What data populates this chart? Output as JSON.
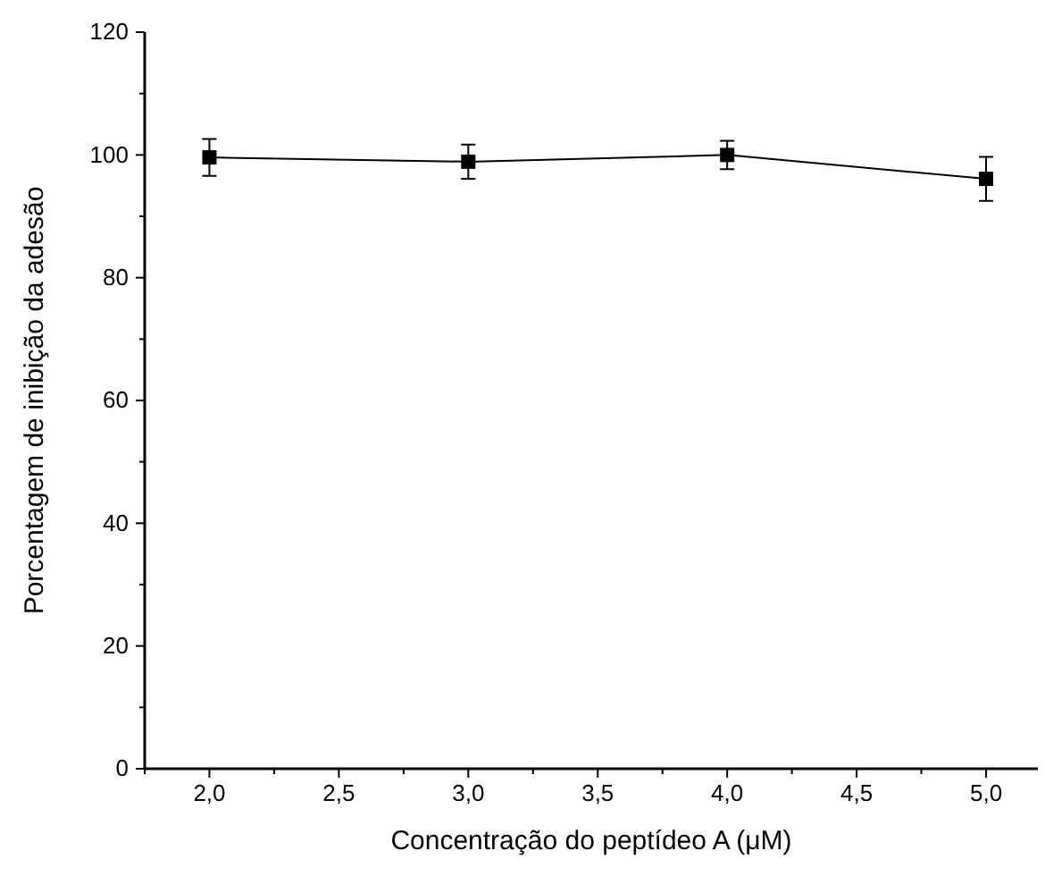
{
  "chart_data": {
    "type": "line",
    "xlabel": "Concentração do peptídeo A (μM)",
    "ylabel": "Porcentagem de inibição da adesão",
    "x": [
      2,
      3,
      4,
      5
    ],
    "series": [
      {
        "color": "#000000",
        "values": [
          99.6,
          98.9,
          100,
          96.1
        ],
        "errors": [
          3,
          2.8,
          2.3,
          3.6
        ]
      }
    ],
    "xlim": [
      1.75,
      5.2
    ],
    "ylim": [
      0,
      120
    ],
    "xticks": [
      {
        "value": 1.75,
        "label": null
      },
      {
        "value": 2,
        "label": "2,0"
      },
      {
        "value": 2.25,
        "label": null
      },
      {
        "value": 2.5,
        "label": "2,5"
      },
      {
        "value": 2.75,
        "label": null
      },
      {
        "value": 3,
        "label": "3,0"
      },
      {
        "value": 3.25,
        "label": null
      },
      {
        "value": 3.5,
        "label": "3,5"
      },
      {
        "value": 3.75,
        "label": null
      },
      {
        "value": 4,
        "label": "4,0"
      },
      {
        "value": 4.25,
        "label": null
      },
      {
        "value": 4.5,
        "label": "4,5"
      },
      {
        "value": 4.75,
        "label": null
      },
      {
        "value": 5,
        "label": "5,0"
      }
    ],
    "yticks": [
      0,
      {
        "value": 10,
        "label": null
      },
      20,
      {
        "value": 30,
        "label": null
      },
      40,
      {
        "value": 50,
        "label": null
      },
      60,
      {
        "value": 70,
        "label": null
      },
      80,
      {
        "value": 90,
        "label": null
      },
      100,
      {
        "value": 110,
        "label": null
      },
      120
    ],
    "marker": "square",
    "line_style": "solid",
    "grid": false
  }
}
